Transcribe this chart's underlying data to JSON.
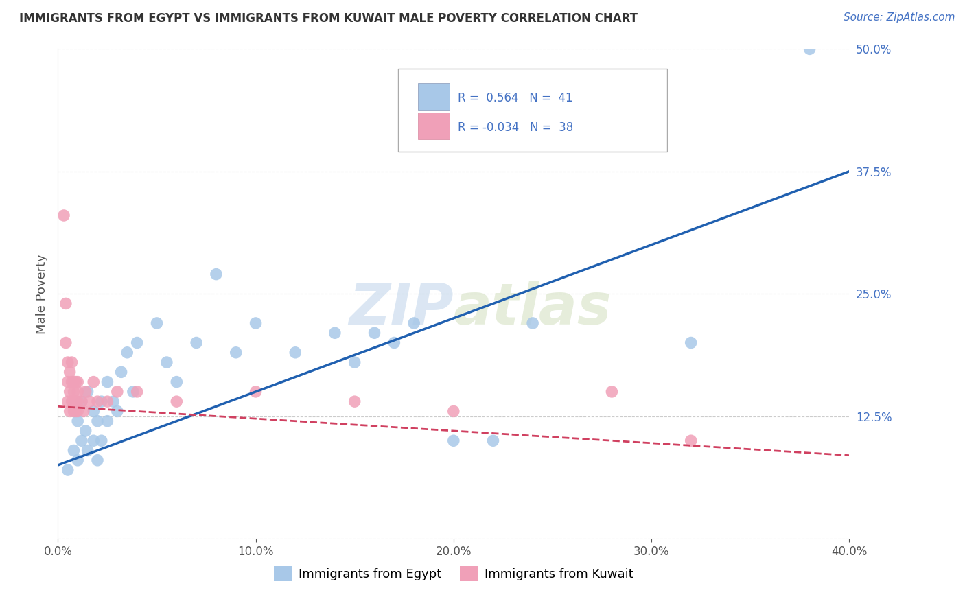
{
  "title": "IMMIGRANTS FROM EGYPT VS IMMIGRANTS FROM KUWAIT MALE POVERTY CORRELATION CHART",
  "source": "Source: ZipAtlas.com",
  "ylabel": "Male Poverty",
  "legend_label_1": "Immigrants from Egypt",
  "legend_label_2": "Immigrants from Kuwait",
  "R1": 0.564,
  "N1": 41,
  "R2": -0.034,
  "N2": 38,
  "color_egypt": "#a8c8e8",
  "color_kuwait": "#f0a0b8",
  "color_egypt_line": "#2060b0",
  "color_kuwait_line": "#d04060",
  "watermark": "ZIPatlas",
  "xlim": [
    0.0,
    0.4
  ],
  "ylim": [
    0.0,
    0.5
  ],
  "xticks": [
    0.0,
    0.1,
    0.2,
    0.3,
    0.4
  ],
  "xticklabels": [
    "0.0%",
    "10.0%",
    "20.0%",
    "30.0%",
    "40.0%"
  ],
  "yticks": [
    0.0,
    0.125,
    0.25,
    0.375,
    0.5
  ],
  "yticklabels": [
    "",
    "12.5%",
    "25.0%",
    "37.5%",
    "50.0%"
  ],
  "egypt_x": [
    0.005,
    0.008,
    0.01,
    0.01,
    0.012,
    0.012,
    0.014,
    0.015,
    0.015,
    0.018,
    0.018,
    0.02,
    0.02,
    0.022,
    0.022,
    0.025,
    0.025,
    0.028,
    0.03,
    0.032,
    0.035,
    0.038,
    0.04,
    0.05,
    0.055,
    0.06,
    0.07,
    0.08,
    0.09,
    0.1,
    0.12,
    0.14,
    0.15,
    0.16,
    0.17,
    0.18,
    0.2,
    0.22,
    0.24,
    0.32,
    0.38
  ],
  "egypt_y": [
    0.07,
    0.09,
    0.08,
    0.12,
    0.1,
    0.14,
    0.11,
    0.09,
    0.15,
    0.1,
    0.13,
    0.08,
    0.12,
    0.14,
    0.1,
    0.12,
    0.16,
    0.14,
    0.13,
    0.17,
    0.19,
    0.15,
    0.2,
    0.22,
    0.18,
    0.16,
    0.2,
    0.27,
    0.19,
    0.22,
    0.19,
    0.21,
    0.18,
    0.21,
    0.2,
    0.22,
    0.1,
    0.1,
    0.22,
    0.2,
    0.5
  ],
  "kuwait_x": [
    0.003,
    0.004,
    0.004,
    0.005,
    0.005,
    0.005,
    0.006,
    0.006,
    0.006,
    0.007,
    0.007,
    0.007,
    0.008,
    0.008,
    0.008,
    0.008,
    0.009,
    0.009,
    0.009,
    0.01,
    0.01,
    0.01,
    0.01,
    0.012,
    0.013,
    0.014,
    0.016,
    0.018,
    0.02,
    0.025,
    0.03,
    0.04,
    0.06,
    0.1,
    0.15,
    0.2,
    0.28,
    0.32
  ],
  "kuwait_y": [
    0.33,
    0.2,
    0.24,
    0.14,
    0.16,
    0.18,
    0.13,
    0.15,
    0.17,
    0.14,
    0.16,
    0.18,
    0.13,
    0.14,
    0.15,
    0.16,
    0.13,
    0.14,
    0.16,
    0.13,
    0.14,
    0.15,
    0.16,
    0.14,
    0.13,
    0.15,
    0.14,
    0.16,
    0.14,
    0.14,
    0.15,
    0.15,
    0.14,
    0.15,
    0.14,
    0.13,
    0.15,
    0.1
  ],
  "background_color": "#ffffff",
  "grid_color": "#cccccc"
}
